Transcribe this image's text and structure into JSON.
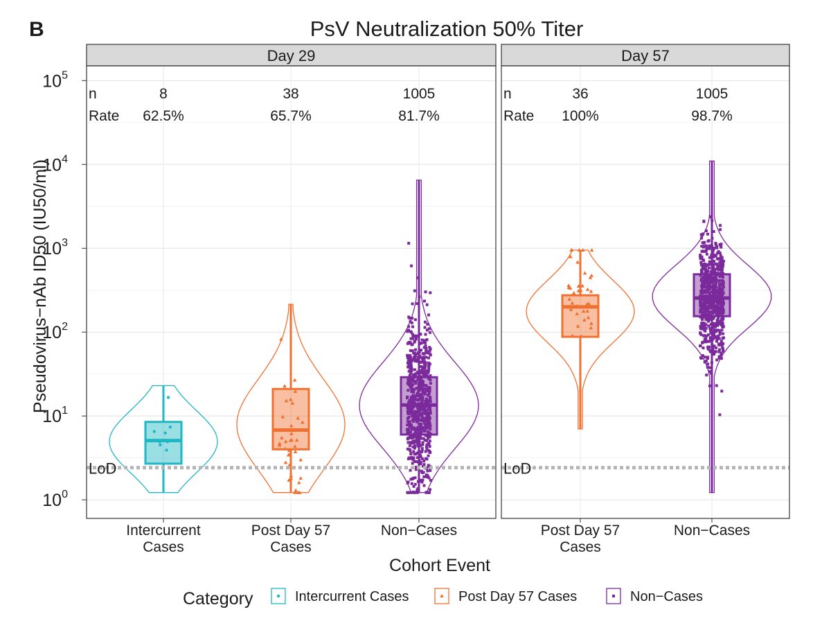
{
  "panel_letter": "B",
  "title": "PsV Neutralization 50% Titer",
  "ylabel": "Pseudovirus−nAb ID50 (IU50/ml)",
  "xlabel": "Cohort Event",
  "legend": {
    "title": "Category",
    "items": [
      {
        "label": "Intercurrent Cases",
        "color": "#1fb7c4",
        "marker": "circle"
      },
      {
        "label": "Post Day 57 Cases",
        "color": "#f07030",
        "marker": "triangle"
      },
      {
        "label": "Non−Cases",
        "color": "#7b2a9b",
        "marker": "square"
      }
    ]
  },
  "lod_label": "LoD",
  "chart_data": {
    "type": "box",
    "y_scale": "log10",
    "ylim": [
      0.6,
      150000
    ],
    "yticks": [
      1,
      10,
      100,
      1000,
      10000,
      100000
    ],
    "lod": 2.42,
    "grid": true,
    "legend_position": "bottom",
    "panels": [
      {
        "strip": "Day 29",
        "row_labels": [
          "n",
          "Rate"
        ],
        "groups": [
          {
            "category": "Intercurrent Cases",
            "tick_lines": [
              "Intercurrent",
              "Cases"
            ],
            "color": "#1fb7c4",
            "n": "8",
            "rate": "62.5%",
            "box": {
              "min": 1.22,
              "q1": 2.7,
              "median": 5.1,
              "q3": 8.5,
              "max": 23
            }
          },
          {
            "category": "Post Day 57 Cases",
            "tick_lines": [
              "Post Day 57",
              "Cases"
            ],
            "color": "#f07030",
            "n": "38",
            "rate": "65.7%",
            "box": {
              "min": 1.22,
              "q1": 4.0,
              "median": 6.8,
              "q3": 21,
              "max": 215
            }
          },
          {
            "category": "Non−Cases",
            "tick_lines": [
              "Non−Cases"
            ],
            "color": "#7b2a9b",
            "n": "1005",
            "rate": "81.7%",
            "box": {
              "min": 1.22,
              "q1": 6.0,
              "median": 13.5,
              "q3": 29,
              "max": 6500
            }
          }
        ]
      },
      {
        "strip": "Day 57",
        "row_labels": [
          "n",
          "Rate"
        ],
        "groups": [
          {
            "category": "Post Day 57 Cases",
            "tick_lines": [
              "Post Day 57",
              "Cases"
            ],
            "color": "#f07030",
            "n": "36",
            "rate": "100%",
            "box": {
              "min": 7.0,
              "q1": 88,
              "median": 200,
              "q3": 275,
              "max": 950
            }
          },
          {
            "category": "Non−Cases",
            "tick_lines": [
              "Non−Cases"
            ],
            "color": "#7b2a9b",
            "n": "1005",
            "rate": "98.7%",
            "box": {
              "min": 1.22,
              "q1": 155,
              "median": 255,
              "q3": 490,
              "max": 11000
            }
          }
        ]
      }
    ]
  }
}
